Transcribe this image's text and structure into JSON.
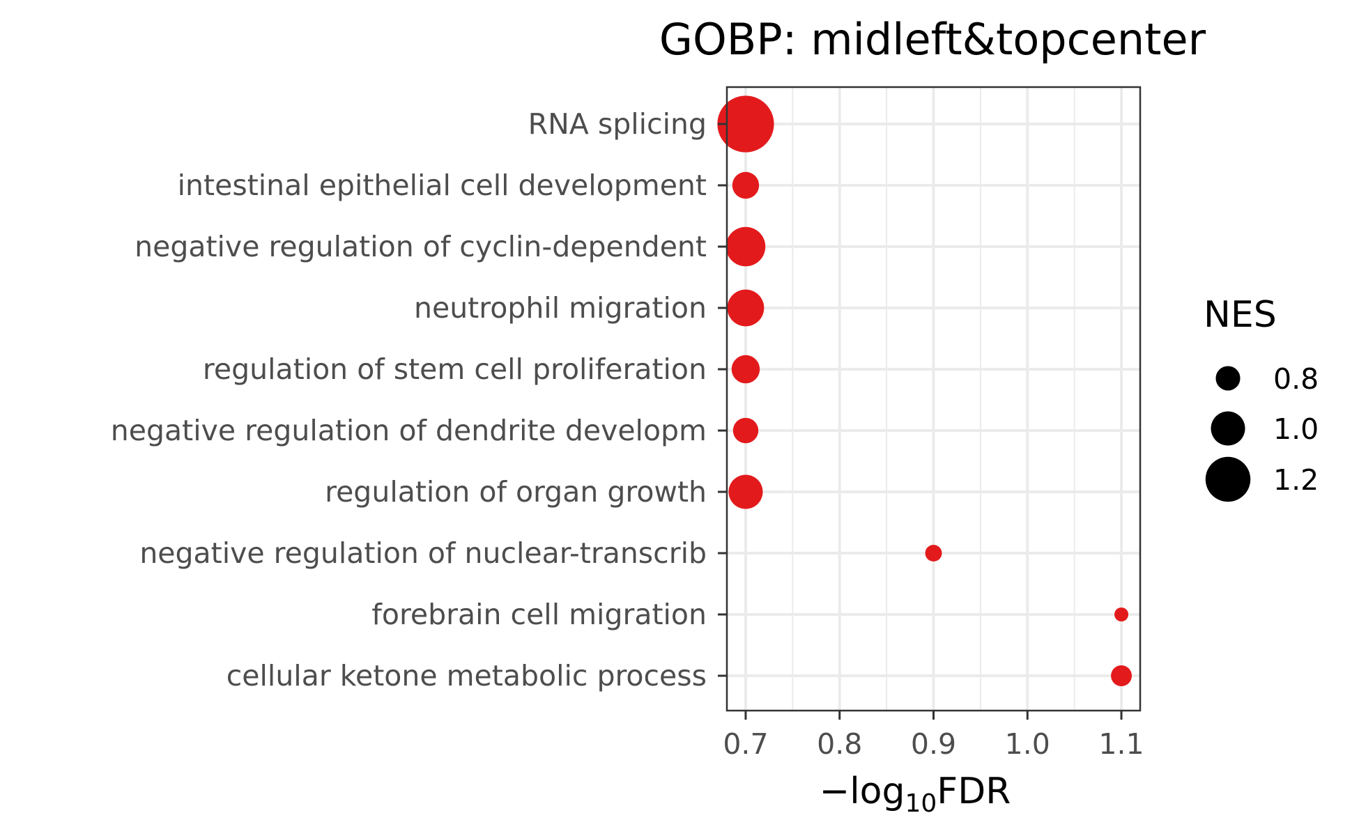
{
  "chart_data": {
    "type": "scatter",
    "title": "GOBP: midleft&topcenter",
    "xlabel": {
      "prefix": "−log",
      "subscript": "10",
      "suffix": "FDR"
    },
    "ylabel": "",
    "xlim": [
      0.68,
      1.12
    ],
    "xticks": [
      0.7,
      0.8,
      0.9,
      1.0,
      1.1
    ],
    "xtick_labels": [
      "0.7",
      "0.8",
      "0.9",
      "1.0",
      "1.1"
    ],
    "grid": true,
    "point_color": "#e31a1c",
    "categories": [
      "RNA splicing",
      "intestinal epithelial cell development",
      "negative regulation of cyclin-dependent ",
      "neutrophil migration",
      "regulation of stem cell proliferation",
      "negative regulation of dendrite developm",
      "regulation of organ growth",
      "negative regulation of nuclear-transcrib",
      "forebrain cell migration",
      "cellular ketone metabolic process"
    ],
    "points": [
      {
        "term": "RNA splicing",
        "x": 0.7,
        "nes": 1.4
      },
      {
        "term": "intestinal epithelial cell development",
        "x": 0.7,
        "nes": 0.85
      },
      {
        "term": "negative regulation of cyclin-dependent ",
        "x": 0.7,
        "nes": 1.1
      },
      {
        "term": "neutrophil migration",
        "x": 0.7,
        "nes": 1.05
      },
      {
        "term": "regulation of stem cell proliferation",
        "x": 0.7,
        "nes": 0.88
      },
      {
        "term": "negative regulation of dendrite developm",
        "x": 0.7,
        "nes": 0.82
      },
      {
        "term": "regulation of organ growth",
        "x": 0.7,
        "nes": 1.0
      },
      {
        "term": "negative regulation of nuclear-transcrib",
        "x": 0.9,
        "nes": 0.62
      },
      {
        "term": "forebrain cell migration",
        "x": 1.1,
        "nes": 0.55
      },
      {
        "term": "cellular ketone metabolic process",
        "x": 1.1,
        "nes": 0.72
      }
    ],
    "legend": {
      "title": "NES",
      "position": "right",
      "entries": [
        {
          "label": "0.8",
          "nes": 0.8
        },
        {
          "label": "1.0",
          "nes": 1.0
        },
        {
          "label": "1.2",
          "nes": 1.2
        }
      ]
    }
  }
}
